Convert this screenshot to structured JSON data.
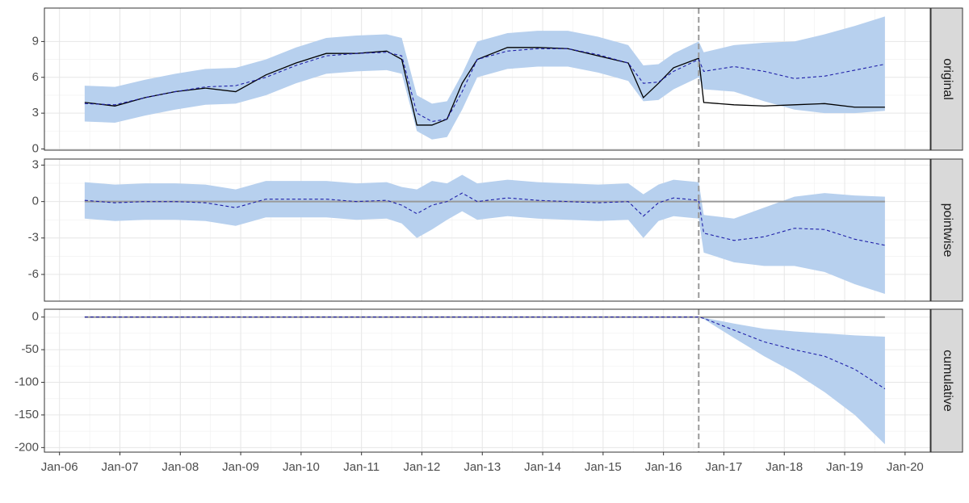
{
  "xlim": [
    "2005-10",
    "2020-06"
  ],
  "xticks": [
    {
      "value": "2006-01",
      "label": "Jan-06"
    },
    {
      "value": "2007-01",
      "label": "Jan-07"
    },
    {
      "value": "2008-01",
      "label": "Jan-08"
    },
    {
      "value": "2009-01",
      "label": "Jan-09"
    },
    {
      "value": "2010-01",
      "label": "Jan-10"
    },
    {
      "value": "2011-01",
      "label": "Jan-11"
    },
    {
      "value": "2012-01",
      "label": "Jan-12"
    },
    {
      "value": "2013-01",
      "label": "Jan-13"
    },
    {
      "value": "2014-01",
      "label": "Jan-14"
    },
    {
      "value": "2015-01",
      "label": "Jan-15"
    },
    {
      "value": "2016-01",
      "label": "Jan-16"
    },
    {
      "value": "2017-01",
      "label": "Jan-17"
    },
    {
      "value": "2018-01",
      "label": "Jan-18"
    },
    {
      "value": "2019-01",
      "label": "Jan-19"
    },
    {
      "value": "2020-01",
      "label": "Jan-20"
    }
  ],
  "intervention": "2016-08",
  "grid": true,
  "chart_data": [
    {
      "type": "line",
      "panel_label": "original",
      "ylim": [
        -0.1,
        11.8
      ],
      "yticks": [
        0,
        3,
        6,
        9
      ],
      "x": [
        "2006-06",
        "2006-12",
        "2007-06",
        "2007-12",
        "2008-06",
        "2008-12",
        "2009-06",
        "2009-12",
        "2010-06",
        "2010-12",
        "2011-06",
        "2011-09",
        "2011-12",
        "2012-03",
        "2012-06",
        "2012-09",
        "2012-12",
        "2013-06",
        "2013-12",
        "2014-06",
        "2014-12",
        "2015-06",
        "2015-09",
        "2015-12",
        "2016-03",
        "2016-08",
        "2016-09",
        "2017-03",
        "2017-09",
        "2018-03",
        "2018-09",
        "2019-03",
        "2019-09"
      ],
      "band": {
        "color": "#b7d0ee",
        "lower": [
          2.3,
          2.2,
          2.8,
          3.3,
          3.7,
          3.8,
          4.5,
          5.5,
          6.3,
          6.5,
          6.6,
          6.3,
          1.5,
          0.8,
          1.0,
          3.3,
          6.0,
          6.7,
          6.9,
          6.9,
          6.4,
          5.7,
          4.0,
          4.1,
          5.0,
          6.0,
          5.0,
          4.8,
          4.0,
          3.3,
          3.0,
          3.0,
          3.2
        ],
        "upper": [
          5.3,
          5.2,
          5.8,
          6.3,
          6.7,
          6.8,
          7.5,
          8.5,
          9.3,
          9.5,
          9.6,
          9.3,
          4.5,
          3.8,
          4.0,
          6.3,
          9.0,
          9.7,
          9.9,
          9.9,
          9.4,
          8.7,
          7.0,
          7.1,
          8.0,
          9.0,
          8.1,
          8.7,
          8.9,
          9.0,
          9.6,
          10.3,
          11.1
        ]
      },
      "series": [
        {
          "color": "#000000",
          "dash": false,
          "values": [
            3.9,
            3.6,
            4.3,
            4.8,
            5.1,
            4.8,
            6.2,
            7.2,
            8.0,
            8.0,
            8.2,
            7.5,
            2.0,
            2.0,
            2.5,
            5.5,
            7.5,
            8.5,
            8.5,
            8.4,
            7.8,
            7.2,
            4.3,
            5.5,
            6.8,
            7.6,
            3.9,
            3.7,
            3.6,
            3.7,
            3.8,
            3.5,
            3.5
          ]
        },
        {
          "color": "#1f1fa8",
          "dash": true,
          "values": [
            3.8,
            3.7,
            4.3,
            4.8,
            5.2,
            5.3,
            6.0,
            7.0,
            7.8,
            8.0,
            8.1,
            7.8,
            3.0,
            2.3,
            2.5,
            4.8,
            7.5,
            8.2,
            8.4,
            8.4,
            7.9,
            7.2,
            5.5,
            5.6,
            6.5,
            7.5,
            6.5,
            6.9,
            6.5,
            5.9,
            6.1,
            6.6,
            7.1
          ]
        }
      ]
    },
    {
      "type": "line",
      "panel_label": "pointwise",
      "ylim": [
        -8.2,
        3.5
      ],
      "yticks": [
        -6,
        -3,
        0,
        3
      ],
      "reference_line": 0,
      "x": [
        "2006-06",
        "2006-12",
        "2007-06",
        "2007-12",
        "2008-06",
        "2008-12",
        "2009-06",
        "2009-12",
        "2010-06",
        "2010-12",
        "2011-06",
        "2011-09",
        "2011-12",
        "2012-03",
        "2012-06",
        "2012-09",
        "2012-12",
        "2013-06",
        "2013-12",
        "2014-06",
        "2014-12",
        "2015-06",
        "2015-09",
        "2015-12",
        "2016-03",
        "2016-08",
        "2016-09",
        "2017-03",
        "2017-09",
        "2018-03",
        "2018-09",
        "2019-03",
        "2019-09"
      ],
      "band": {
        "color": "#b7d0ee",
        "lower": [
          -1.4,
          -1.6,
          -1.5,
          -1.5,
          -1.6,
          -2.0,
          -1.3,
          -1.3,
          -1.3,
          -1.5,
          -1.4,
          -1.8,
          -3.0,
          -2.3,
          -1.5,
          -0.8,
          -1.5,
          -1.2,
          -1.4,
          -1.5,
          -1.6,
          -1.5,
          -3.0,
          -1.6,
          -1.2,
          -1.4,
          -4.2,
          -5.0,
          -5.3,
          -5.3,
          -5.8,
          -6.8,
          -7.6
        ],
        "upper": [
          1.6,
          1.4,
          1.5,
          1.5,
          1.4,
          1.0,
          1.7,
          1.7,
          1.7,
          1.5,
          1.6,
          1.2,
          1.0,
          1.7,
          1.5,
          2.2,
          1.5,
          1.8,
          1.6,
          1.5,
          1.4,
          1.5,
          0.6,
          1.4,
          1.8,
          1.6,
          -1.1,
          -1.4,
          -0.5,
          0.4,
          0.7,
          0.5,
          0.4
        ]
      },
      "series": [
        {
          "color": "#1f1fa8",
          "dash": true,
          "values": [
            0.1,
            -0.1,
            0,
            0,
            -0.1,
            -0.5,
            0.2,
            0.2,
            0.2,
            0,
            0.1,
            -0.3,
            -1.0,
            -0.3,
            0,
            0.7,
            0,
            0.3,
            0.1,
            0,
            -0.1,
            0,
            -1.2,
            -0.1,
            0.3,
            0.1,
            -2.6,
            -3.2,
            -2.9,
            -2.2,
            -2.3,
            -3.1,
            -3.6
          ]
        }
      ]
    },
    {
      "type": "line",
      "panel_label": "cumulative",
      "ylim": [
        -207,
        12
      ],
      "yticks": [
        -200,
        -150,
        -100,
        -50,
        0
      ],
      "reference_line": 0,
      "x": [
        "2006-06",
        "2016-08",
        "2016-09",
        "2017-03",
        "2017-09",
        "2018-03",
        "2018-09",
        "2019-03",
        "2019-09"
      ],
      "band": {
        "color": "#b7d0ee",
        "lower": [
          0,
          0,
          -3,
          -32,
          -60,
          -85,
          -115,
          -150,
          -195
        ],
        "upper": [
          0,
          0,
          -1,
          -10,
          -18,
          -22,
          -25,
          -28,
          -30
        ]
      },
      "series": [
        {
          "color": "#1f1fa8",
          "dash": true,
          "values": [
            0,
            0,
            -2,
            -20,
            -38,
            -50,
            -60,
            -80,
            -110
          ]
        }
      ]
    }
  ]
}
